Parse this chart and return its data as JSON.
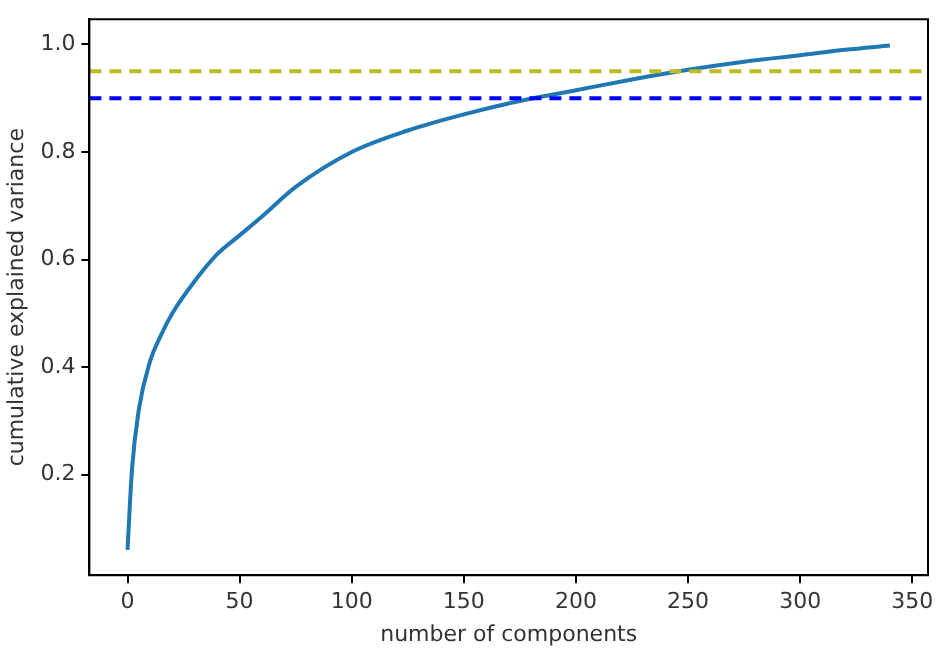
{
  "chart_data": {
    "type": "line",
    "xlabel": "number of components",
    "ylabel": "cumulative explained variance",
    "x": [
      0,
      2,
      5,
      10,
      15,
      20,
      30,
      40,
      50,
      60,
      75,
      100,
      125,
      150,
      175,
      200,
      225,
      250,
      275,
      300,
      320,
      340
    ],
    "series": [
      {
        "color": "#1f77b4",
        "values": [
          0.06,
          0.21,
          0.32,
          0.41,
          0.46,
          0.5,
          0.56,
          0.61,
          0.645,
          0.68,
          0.735,
          0.8,
          0.84,
          0.87,
          0.895,
          0.915,
          0.935,
          0.953,
          0.968,
          0.98,
          0.99,
          0.998
        ]
      }
    ],
    "xlim": [
      -17,
      357
    ],
    "ylim": [
      0.013,
      1.047
    ],
    "xticks": [
      0,
      50,
      100,
      150,
      200,
      250,
      300,
      350
    ],
    "yticks": [
      {
        "value": 0.2,
        "label": "0.2"
      },
      {
        "value": 0.4,
        "label": "0.4"
      },
      {
        "value": 0.6,
        "label": "0.6"
      },
      {
        "value": 0.8,
        "label": "0.8"
      },
      {
        "value": 1,
        "label": "1.0"
      }
    ],
    "ref_lines": [
      {
        "axis": "y",
        "value": 0.95,
        "color": "#bcbd22",
        "line_style": "dashed"
      },
      {
        "axis": "y",
        "value": 0.9,
        "color": "#0000ff",
        "line_style": "dashed"
      }
    ],
    "grid": false,
    "legend": false,
    "marker": "none",
    "line_style": "solid"
  }
}
